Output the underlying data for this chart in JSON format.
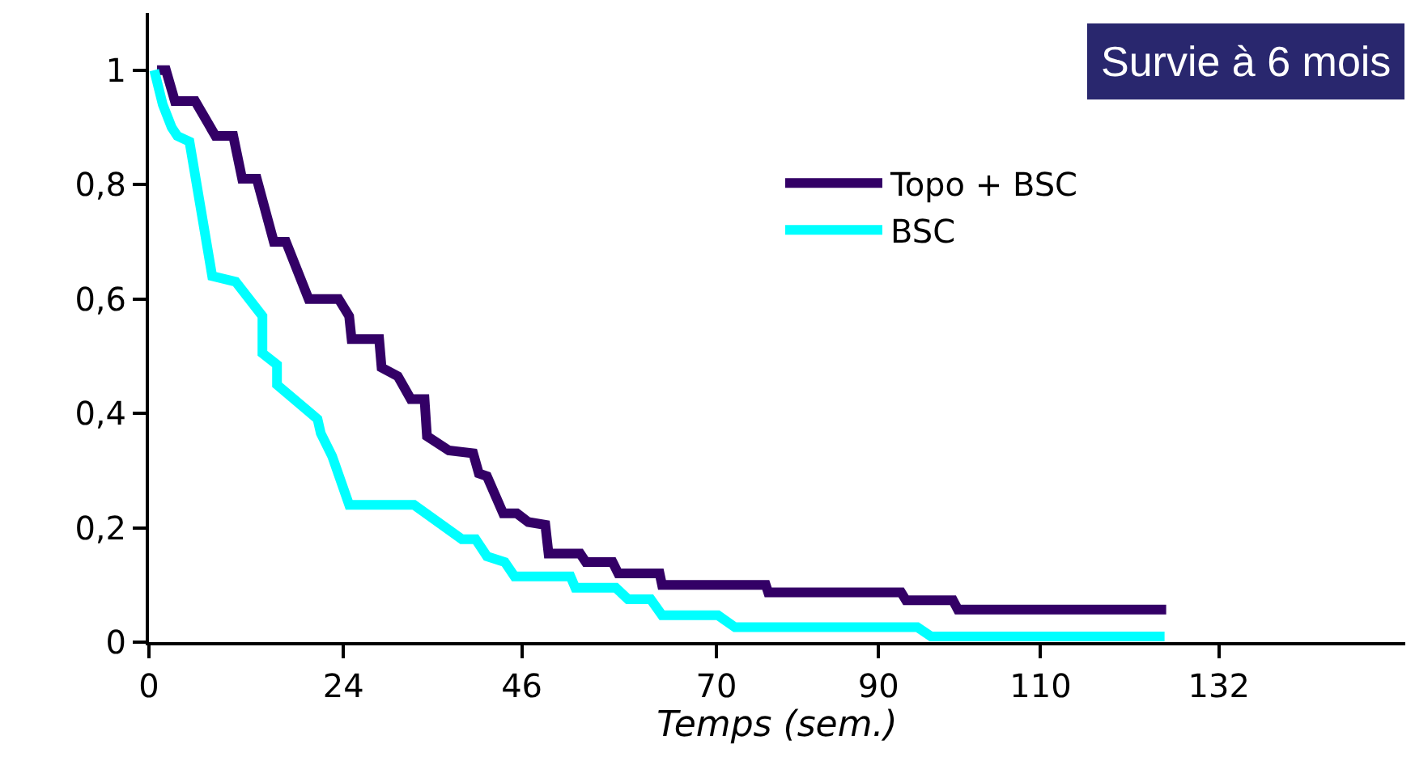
{
  "chart_data": {
    "type": "line",
    "title": "Survie à 6 mois",
    "xlabel": "Temps (sem.)",
    "series": [
      {
        "name": "Topo + BSC",
        "color": "#330066",
        "x": [
          1.0,
          2.1,
          3.2,
          5.7,
          8.2,
          10.4,
          11.5,
          13.3,
          15.4,
          16.9,
          19.7,
          23.4,
          24.7,
          25.0,
          28.4,
          28.7,
          30.7,
          32.3,
          34.0,
          34.3,
          37.0,
          40.0,
          40.7,
          41.7,
          43.7,
          45.4,
          46.8,
          48.9,
          49.3,
          53.2,
          53.9,
          57.2,
          57.9,
          63.0,
          63.3,
          76.1,
          76.4,
          92.8,
          93.4,
          99.2,
          99.8,
          125.5
        ],
        "values": [
          1.0,
          1.0,
          0.946,
          0.946,
          0.885,
          0.885,
          0.81,
          0.81,
          0.7,
          0.7,
          0.6,
          0.6,
          0.57,
          0.53,
          0.53,
          0.48,
          0.465,
          0.425,
          0.425,
          0.36,
          0.335,
          0.33,
          0.295,
          0.29,
          0.225,
          0.225,
          0.21,
          0.205,
          0.155,
          0.155,
          0.14,
          0.14,
          0.12,
          0.12,
          0.1,
          0.1,
          0.087,
          0.087,
          0.073,
          0.073,
          0.057,
          0.057
        ]
      },
      {
        "name": "BSC",
        "color": "#00ffff",
        "x": [
          0.65,
          1.7,
          2.8,
          3.5,
          5.0,
          7.8,
          10.7,
          14.0,
          14.0,
          15.8,
          15.8,
          20.8,
          21.2,
          22.6,
          24.7,
          32.7,
          38.6,
          40.3,
          41.7,
          43.9,
          45.1,
          52.0,
          52.6,
          57.6,
          59.1,
          61.9,
          63.3,
          70.2,
          72.3,
          94.8,
          96.5,
          125.3
        ],
        "values": [
          1.0,
          0.94,
          0.9,
          0.885,
          0.875,
          0.64,
          0.63,
          0.57,
          0.505,
          0.485,
          0.45,
          0.39,
          0.365,
          0.325,
          0.24,
          0.24,
          0.18,
          0.18,
          0.15,
          0.14,
          0.115,
          0.115,
          0.095,
          0.095,
          0.075,
          0.075,
          0.047,
          0.047,
          0.026,
          0.026,
          0.01,
          0.01
        ]
      }
    ],
    "xlim": [
      0,
      155
    ],
    "xticks": [
      0,
      24,
      46,
      70,
      90,
      110,
      132
    ],
    "ylim": [
      0,
      1.1
    ],
    "yticks": [
      0,
      {
        "value": 0.2,
        "label": "0,2"
      },
      {
        "value": 0.4,
        "label": "0,4"
      },
      {
        "value": 0.6,
        "label": "0,6"
      },
      {
        "value": 0.8,
        "label": "0,8"
      },
      1
    ],
    "legend": "top right",
    "marker": "none",
    "line_style": "solid"
  }
}
